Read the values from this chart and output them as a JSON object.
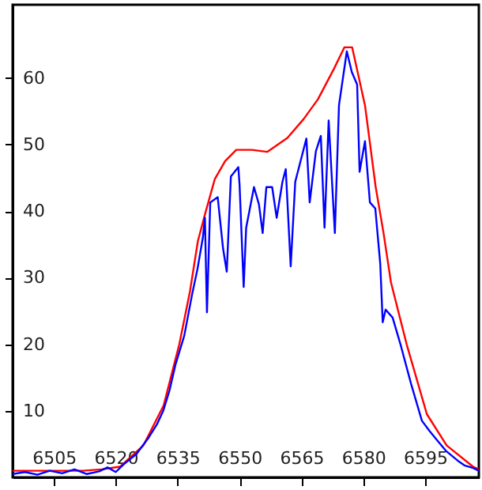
{
  "chart_data": {
    "type": "line",
    "xlim": [
      6495,
      6608
    ],
    "ylim": [
      0,
      71
    ],
    "xticks": [
      6505,
      6520,
      6535,
      6550,
      6565,
      6580,
      6595
    ],
    "yticks": [
      10,
      20,
      30,
      40,
      50,
      60
    ],
    "grid": false,
    "marker": "none",
    "line_style": "solid",
    "series": [
      {
        "color": "#ff0000",
        "x": [
          6495,
          6505,
          6512,
          6516.6,
          6521,
          6526.7,
          6531.6,
          6535.4,
          6538,
          6539.9,
          6541.7,
          6544,
          6546.5,
          6549.2,
          6553,
          6556.7,
          6561.6,
          6565.5,
          6569,
          6572.9,
          6575.4,
          6577.3,
          6580.4,
          6583,
          6584.9,
          6586.7,
          6590.5,
          6595.4,
          6600.2,
          6606.6,
          6608
        ],
        "values": [
          1,
          1,
          1,
          1.2,
          1.6,
          4.8,
          10.8,
          20,
          28,
          35.5,
          39.7,
          44.8,
          47.5,
          49.2,
          49.2,
          48.9,
          51,
          53.8,
          56.8,
          61.4,
          64.6,
          64.6,
          55.9,
          43.6,
          36.7,
          29.3,
          20,
          9.5,
          4.8,
          1.6,
          1.2
        ]
      },
      {
        "color": "#0000ff",
        "x": [
          6495,
          6498,
          6501,
          6504,
          6507,
          6510,
          6513,
          6516,
          6518,
          6520,
          6522,
          6525,
          6528,
          6530,
          6531.5,
          6533,
          6534.5,
          6536.6,
          6538.5,
          6539.8,
          6541.1,
          6541.6,
          6542.1,
          6542.9,
          6544.7,
          6546,
          6546.9,
          6547.9,
          6549.7,
          6550,
          6551,
          6551.6,
          6553.5,
          6554.7,
          6555.6,
          6556.5,
          6557.9,
          6559,
          6560.4,
          6561.2,
          6562.4,
          6563.5,
          6566.2,
          6567,
          6568.5,
          6569.7,
          6570.6,
          6571.6,
          6573.1,
          6574.1,
          6576,
          6577.2,
          6578.5,
          6579.1,
          6580.4,
          6581.6,
          6582.9,
          6584.1,
          6584.7,
          6585.4,
          6587.1,
          6589,
          6591.6,
          6594.2,
          6596,
          6598,
          6600,
          6602.9,
          6604.5,
          6606.6,
          6608
        ],
        "values": [
          0.5,
          0.8,
          0.4,
          1,
          0.6,
          1.2,
          0.5,
          0.9,
          1.5,
          0.8,
          2,
          3.5,
          6,
          8,
          10,
          13,
          17,
          21.3,
          27.5,
          31.3,
          36,
          39,
          24.8,
          41.3,
          42.1,
          34.4,
          30.9,
          45.2,
          46.6,
          44,
          28.6,
          37.5,
          43.6,
          41,
          36.7,
          43.6,
          43.6,
          39,
          44.4,
          46.3,
          31.7,
          44.4,
          50.9,
          41.3,
          49,
          51.3,
          37.5,
          53.6,
          36.7,
          55.9,
          64,
          60.9,
          59,
          45.9,
          50.5,
          41.3,
          40.4,
          32.1,
          23.3,
          25.2,
          24,
          20,
          14,
          8.5,
          7,
          5.5,
          4,
          2.5,
          1.8,
          1.4,
          1
        ]
      }
    ]
  }
}
